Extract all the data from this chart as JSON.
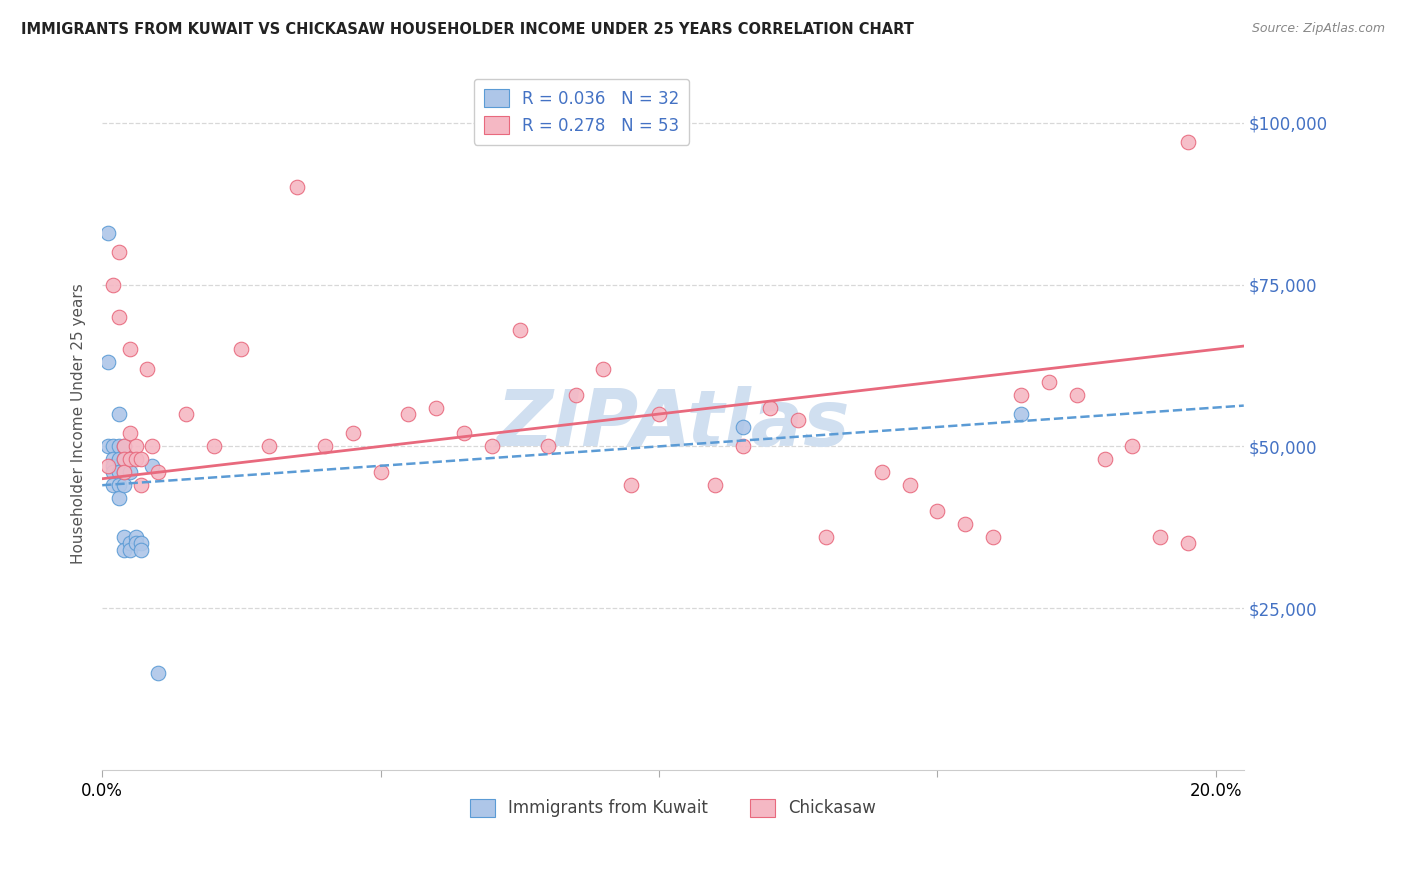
{
  "title": "IMMIGRANTS FROM KUWAIT VS CHICKASAW HOUSEHOLDER INCOME UNDER 25 YEARS CORRELATION CHART",
  "source": "Source: ZipAtlas.com",
  "ylabel": "Householder Income Under 25 years",
  "xlim": [
    0.0,
    0.205
  ],
  "ylim": [
    0,
    107000
  ],
  "xticks": [
    0.0,
    0.05,
    0.1,
    0.15,
    0.2
  ],
  "xtick_labels": [
    "0.0%",
    "",
    "",
    "",
    "20.0%"
  ],
  "ytick_labels": [
    "$25,000",
    "$50,000",
    "$75,000",
    "$100,000"
  ],
  "ytick_values": [
    25000,
    50000,
    75000,
    100000
  ],
  "r_blue": 0.036,
  "n_blue": 32,
  "r_pink": 0.278,
  "n_pink": 53,
  "blue_color": "#aec6e8",
  "pink_color": "#f5b8c4",
  "blue_edge_color": "#5b9bd5",
  "pink_edge_color": "#e8697d",
  "blue_line_color": "#5b9bd5",
  "pink_line_color": "#e8697d",
  "legend_text_color": "#4472c4",
  "watermark": "ZIPAtlas",
  "watermark_color": "#d0dff0",
  "blue_x": [
    0.001,
    0.001,
    0.001,
    0.002,
    0.002,
    0.002,
    0.002,
    0.002,
    0.003,
    0.003,
    0.003,
    0.003,
    0.003,
    0.003,
    0.004,
    0.004,
    0.004,
    0.004,
    0.004,
    0.004,
    0.005,
    0.005,
    0.005,
    0.005,
    0.006,
    0.006,
    0.007,
    0.007,
    0.009,
    0.01,
    0.115,
    0.165
  ],
  "blue_y": [
    83000,
    50000,
    63000,
    50000,
    48000,
    47000,
    46000,
    44000,
    55000,
    50000,
    48000,
    46000,
    44000,
    42000,
    50000,
    48000,
    46000,
    44000,
    36000,
    34000,
    48000,
    46000,
    35000,
    34000,
    36000,
    35000,
    35000,
    34000,
    47000,
    15000,
    53000,
    55000
  ],
  "pink_x": [
    0.001,
    0.002,
    0.003,
    0.003,
    0.004,
    0.004,
    0.004,
    0.005,
    0.005,
    0.005,
    0.006,
    0.006,
    0.007,
    0.007,
    0.008,
    0.009,
    0.01,
    0.015,
    0.02,
    0.025,
    0.03,
    0.035,
    0.04,
    0.045,
    0.05,
    0.055,
    0.06,
    0.065,
    0.07,
    0.075,
    0.08,
    0.085,
    0.09,
    0.095,
    0.1,
    0.11,
    0.115,
    0.12,
    0.125,
    0.13,
    0.14,
    0.145,
    0.15,
    0.155,
    0.16,
    0.165,
    0.17,
    0.175,
    0.18,
    0.185,
    0.19,
    0.195,
    0.195
  ],
  "pink_y": [
    47000,
    75000,
    80000,
    70000,
    50000,
    48000,
    46000,
    65000,
    52000,
    48000,
    50000,
    48000,
    48000,
    44000,
    62000,
    50000,
    46000,
    55000,
    50000,
    65000,
    50000,
    90000,
    50000,
    52000,
    46000,
    55000,
    56000,
    52000,
    50000,
    68000,
    50000,
    58000,
    62000,
    44000,
    55000,
    44000,
    50000,
    56000,
    54000,
    36000,
    46000,
    44000,
    40000,
    38000,
    36000,
    58000,
    60000,
    58000,
    48000,
    50000,
    36000,
    97000,
    35000
  ]
}
